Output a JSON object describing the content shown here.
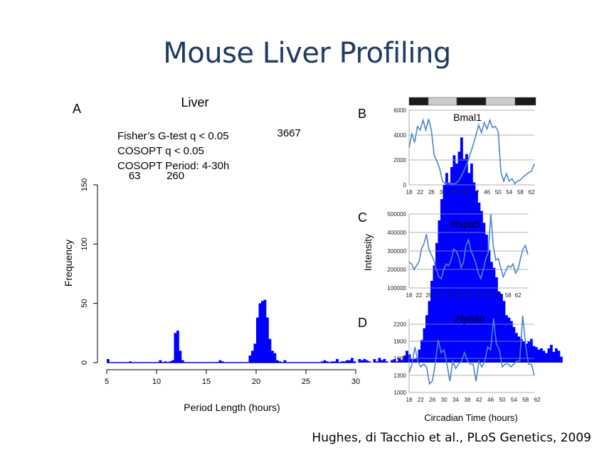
{
  "slide": {
    "title": "Mouse Liver Profiling",
    "citation": "Hughes, di Tacchio  et al., PLoS Genetics, 2009"
  },
  "colors": {
    "title": "#1f3b63",
    "histogram_bars": "#0000ff",
    "line_series": "#4a86c8",
    "gridlines": "#999999",
    "dark_phase": "#1a1a1a",
    "light_phase": "#cccccc"
  },
  "chart_data": [
    {
      "id": "A",
      "type": "bar",
      "panel_label": "A",
      "title": "Liver",
      "xlabel": "Period Length (hours)",
      "ylabel": "Frequency",
      "xlim": [
        5,
        30
      ],
      "ylim": [
        0,
        150
      ],
      "x_ticks": [
        5,
        10,
        15,
        20,
        25,
        30
      ],
      "y_ticks": [
        0,
        50,
        100,
        150
      ],
      "bin_start": 5,
      "bin_width": 0.25,
      "annotations": [
        "Fisher’s G-test q < 0.05",
        "COSOPT q < 0.05",
        "COSOPT Period: 4-30h"
      ],
      "peak_labels": [
        {
          "text": "63",
          "x": 7.8,
          "y": 27
        },
        {
          "text": "260",
          "x": 11.9,
          "y": 54
        },
        {
          "text": "3667",
          "x": 23.3,
          "y": 190
        }
      ],
      "values": [
        3,
        0,
        0,
        0,
        0,
        0,
        0,
        0,
        0,
        1,
        0,
        0,
        0,
        0,
        0,
        0,
        0,
        0,
        0,
        0,
        0,
        2,
        0,
        1,
        0,
        1,
        2,
        25,
        27,
        10,
        2,
        0,
        0,
        0,
        0,
        0,
        0,
        0,
        0,
        0,
        0,
        0,
        0,
        0,
        0,
        2,
        1,
        0,
        0,
        0,
        0,
        0,
        0,
        0,
        0,
        0,
        0,
        6,
        10,
        16,
        38,
        50,
        52,
        53,
        38,
        20,
        10,
        8,
        2,
        1,
        0,
        2,
        0,
        0,
        0,
        0,
        0,
        0,
        0,
        0,
        0,
        0,
        0,
        0,
        0,
        0,
        1,
        2,
        1,
        0,
        1,
        1,
        3,
        0,
        1,
        1,
        2,
        2,
        4,
        1,
        0,
        3,
        2,
        3,
        2,
        1,
        0,
        3,
        1,
        4,
        2,
        3,
        1,
        0,
        2,
        3,
        1,
        4,
        2,
        6,
        10,
        7,
        3,
        3,
        4,
        11,
        19,
        29,
        40,
        52,
        69,
        82,
        101,
        120,
        138,
        150,
        160,
        152,
        165,
        175,
        168,
        178,
        190,
        172,
        176,
        160,
        168,
        152,
        145,
        135,
        128,
        118,
        108,
        95,
        85,
        80,
        72,
        60,
        58,
        52,
        40,
        38,
        35,
        30,
        25,
        22,
        20,
        18,
        16,
        18,
        20,
        14,
        13,
        11,
        12,
        10,
        8,
        12,
        15,
        9,
        12,
        10,
        5
      ]
    },
    {
      "id": "B",
      "type": "line",
      "panel_label": "B",
      "series_label": "Bmal1",
      "ylim": [
        0,
        6000
      ],
      "y_ticks": [
        0,
        2000,
        4000,
        6000
      ],
      "x_ticks": [
        18,
        22,
        26,
        30,
        34,
        38,
        42,
        46,
        50,
        54,
        58,
        62
      ],
      "x_start": 18,
      "x_step": 1,
      "values": [
        3000,
        4100,
        3400,
        4700,
        4400,
        5200,
        4400,
        5300,
        4400,
        2400,
        1900,
        1300,
        300,
        100,
        150,
        100,
        80,
        150,
        400,
        800,
        1300,
        1800,
        2500,
        3200,
        4000,
        4800,
        4200,
        5000,
        4500,
        5200,
        4600,
        4700,
        4300,
        1000,
        300,
        900,
        300,
        500,
        100,
        300,
        400,
        650,
        800,
        1000,
        1100,
        1700
      ]
    },
    {
      "id": "C",
      "type": "line",
      "panel_label": "C",
      "series_label": "Hspa5",
      "ylabel": "Intensity",
      "ylim": [
        100000,
        500000
      ],
      "y_ticks": [
        100000,
        200000,
        300000,
        400000,
        500000
      ],
      "x_ticks": [
        18,
        22,
        26,
        30,
        34,
        38,
        42,
        46,
        50,
        54,
        58,
        62
      ],
      "x_start": 18,
      "x_step": 1,
      "values": [
        240000,
        230000,
        200000,
        220000,
        240000,
        310000,
        340000,
        390000,
        310000,
        280000,
        250000,
        200000,
        160000,
        150000,
        200000,
        230000,
        220000,
        250000,
        310000,
        300000,
        270000,
        210000,
        240000,
        330000,
        360000,
        300000,
        270000,
        230000,
        180000,
        150000,
        200000,
        260000,
        290000,
        500000,
        330000,
        250000,
        260000,
        210000,
        160000,
        190000,
        220000,
        210000,
        230000,
        180000,
        200000,
        260000,
        310000,
        330000,
        280000
      ]
    },
    {
      "id": "D",
      "type": "line",
      "panel_label": "D",
      "series_label": "Zfp560",
      "xlabel": "Circadian Time (hours)",
      "ylim": [
        1000,
        2300
      ],
      "y_ticks": [
        1000,
        1300,
        1600,
        1900,
        2200
      ],
      "x_ticks": [
        18,
        22,
        26,
        30,
        34,
        38,
        42,
        46,
        50,
        54,
        58,
        62
      ],
      "x_start": 18,
      "x_step": 1,
      "values": [
        1350,
        1500,
        1800,
        1550,
        1450,
        1500,
        1450,
        1150,
        1200,
        1500,
        1920,
        1700,
        1750,
        1500,
        1200,
        1550,
        1420,
        1500,
        1550,
        1700,
        1560,
        1500,
        1500,
        1200,
        1550,
        1450,
        1550,
        1800,
        1750,
        2300,
        1850,
        1750,
        1450,
        1500,
        1500,
        1450,
        1500,
        1550,
        1550,
        2350,
        1850,
        1500,
        1500,
        1300
      ]
    }
  ]
}
